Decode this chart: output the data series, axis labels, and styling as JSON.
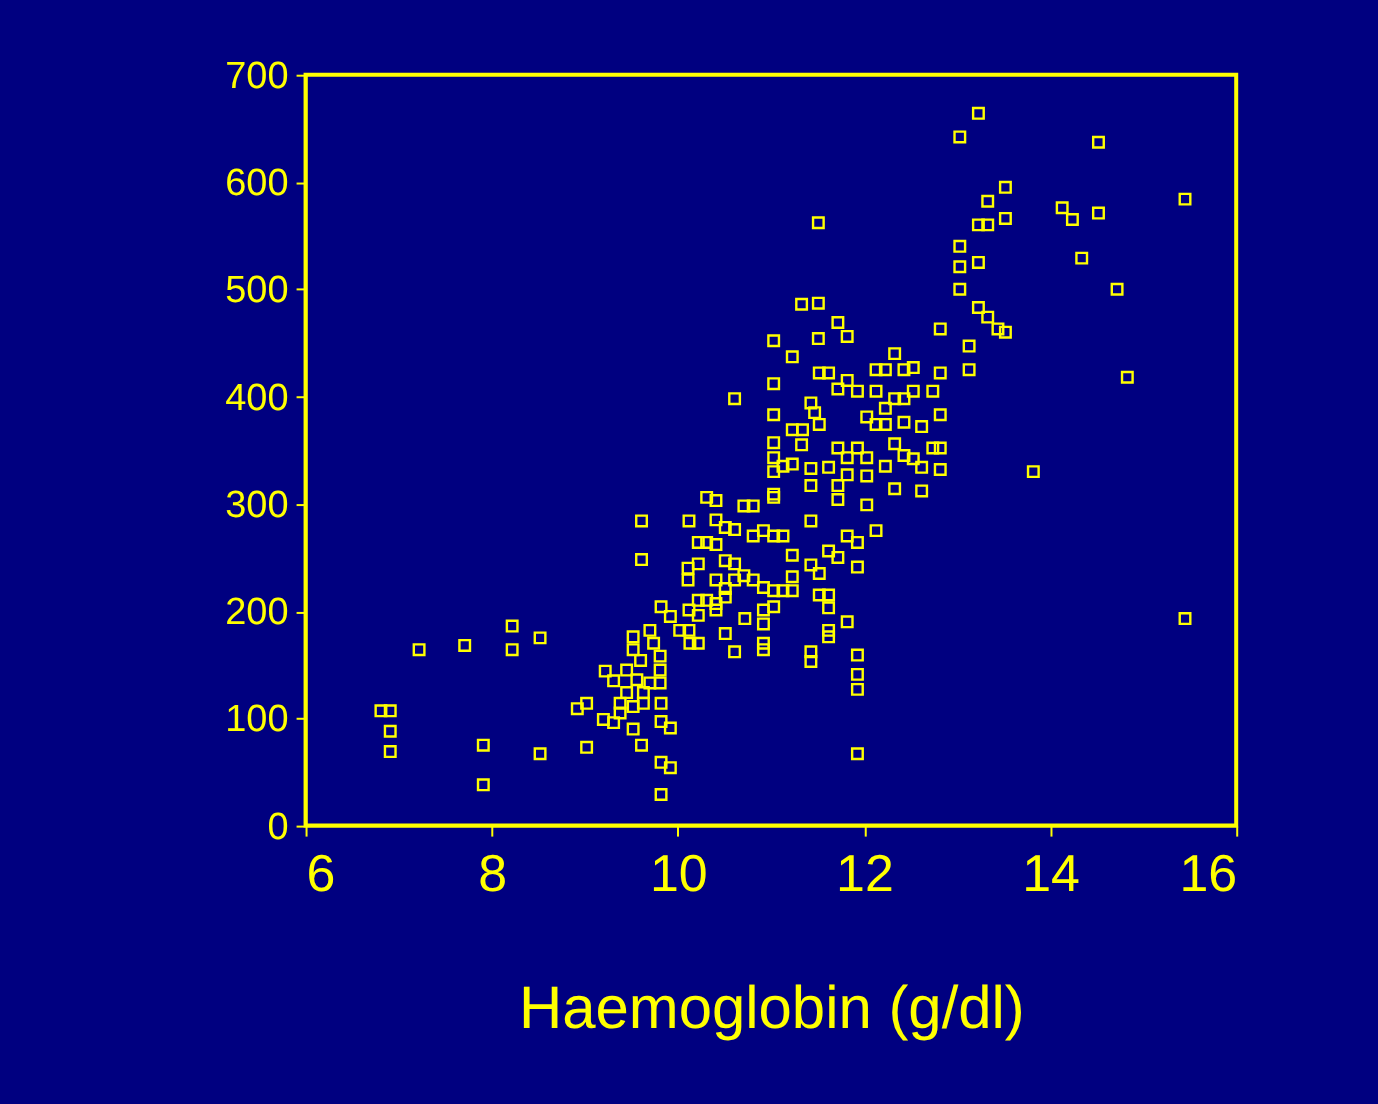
{
  "chart_data": {
    "type": "scatter",
    "xlabel": "Haemoglobin (g/dl)",
    "xlim": [
      6,
      16
    ],
    "xticks": [
      6,
      8,
      10,
      12,
      14,
      16
    ],
    "ylim": [
      0,
      700
    ],
    "yticks": [
      0,
      100,
      200,
      300,
      400,
      500,
      600,
      700
    ],
    "marker": "square",
    "grid": false,
    "series": [
      {
        "color": "#ffff00",
        "x": [
          13.23,
          13.03,
          14.52,
          15.45,
          13.52,
          13.33,
          13.52,
          13.23,
          13.33,
          14.13,
          14.24,
          14.52,
          11.51,
          13.03,
          13.03,
          13.23,
          14.34,
          13.03,
          14.72,
          13.23,
          13.33,
          13.44,
          13.52,
          12.82,
          13.13,
          13.13,
          14.83,
          13.82,
          15.45,
          11.33,
          11.51,
          11.72,
          11.82,
          11.03,
          11.51,
          11.23,
          12.33,
          11.52,
          11.62,
          11.82,
          11.72,
          11.93,
          12.13,
          12.23,
          12.43,
          12.53,
          12.82,
          11.03,
          10.61,
          12.13,
          12.33,
          12.53,
          12.74,
          12.23,
          12.43,
          11.43,
          11.47,
          11.52,
          11.03,
          12.03,
          12.82,
          12.13,
          12.23,
          12.43,
          12.62,
          11.23,
          11.34,
          11.03,
          11.33,
          12.33,
          11.03,
          11.13,
          11.23,
          11.72,
          11.93,
          11.82,
          12.03,
          12.43,
          12.53,
          12.74,
          12.82,
          11.03,
          11.43,
          11.62,
          11.82,
          12.03,
          12.23,
          12.62,
          12.82,
          11.43,
          11.72,
          11.72,
          11.03,
          12.33,
          12.62,
          12.03,
          10.31,
          10.41,
          10.71,
          10.81,
          11.03,
          9.61,
          10.12,
          10.41,
          11.43,
          10.51,
          10.61,
          10.81,
          10.92,
          11.03,
          11.13,
          12.13,
          11.82,
          11.93,
          10.22,
          10.31,
          10.41,
          9.61,
          11.23,
          11.62,
          11.72,
          11.93,
          10.11,
          10.22,
          10.11,
          10.51,
          10.61,
          10.71,
          10.81,
          10.92,
          11.23,
          11.43,
          11.52,
          11.13,
          11.23,
          10.41,
          10.51,
          10.61,
          10.22,
          10.31,
          10.41,
          10.51,
          9.82,
          10.12,
          10.22,
          10.41,
          9.92,
          10.12,
          10.22,
          11.03,
          11.03,
          10.92,
          10.92,
          10.92,
          10.92,
          10.61,
          10.51,
          10.72,
          11.52,
          11.62,
          11.62,
          11.82,
          11.62,
          11.62,
          11.43,
          11.43,
          11.93,
          11.93,
          11.93,
          11.93,
          9.82,
          9.92,
          9.82,
          9.82,
          9.82,
          9.92,
          9.61,
          9.52,
          9.02,
          8.92,
          9.02,
          9.22,
          9.31,
          9.2,
          9.31,
          9.38,
          9.52,
          9.7,
          9.52,
          9.6,
          9.74,
          9.81,
          9.81,
          9.81,
          9.45,
          9.56,
          9.45,
          9.63,
          9.38,
          9.52,
          9.63,
          9.7,
          8.52,
          7.91,
          7.91,
          8.52,
          8.22,
          8.22,
          7.71,
          7.22,
          6.81,
          6.91,
          6.91,
          6.91,
          10.02,
          10.13
        ],
        "values": [
          664,
          642,
          637,
          584,
          595,
          582,
          566,
          560,
          560,
          576,
          565,
          571,
          562,
          540,
          521,
          525,
          529,
          500,
          500,
          483,
          474,
          463,
          460,
          463,
          447,
          425,
          418,
          330,
          193,
          486,
          487,
          469,
          456,
          452,
          454,
          437,
          440,
          422,
          422,
          415,
          407,
          405,
          425,
          425,
          425,
          427,
          422,
          412,
          398,
          405,
          398,
          405,
          405,
          389,
          398,
          394,
          385,
          374,
          383,
          381,
          383,
          374,
          374,
          376,
          372,
          369,
          369,
          357,
          355,
          356,
          343,
          335,
          337,
          352,
          352,
          343,
          343,
          345,
          342,
          352,
          352,
          330,
          333,
          334,
          327,
          326,
          335,
          334,
          332,
          317,
          317,
          304,
          309,
          314,
          312,
          299,
          306,
          303,
          298,
          298,
          306,
          284,
          284,
          285,
          284,
          278,
          276,
          270,
          275,
          270,
          270,
          275,
          270,
          264,
          264,
          264,
          262,
          248,
          252,
          256,
          250,
          241,
          240,
          244,
          229,
          247,
          244,
          233,
          229,
          222,
          232,
          243,
          235,
          219,
          219,
          229,
          221,
          229,
          210,
          210,
          207,
          213,
          204,
          201,
          196,
          201,
          195,
          182,
          170,
          219,
          204,
          201,
          188,
          170,
          164,
          162,
          179,
          193,
          215,
          215,
          203,
          190,
          182,
          176,
          162,
          153,
          159,
          141,
          127,
          67,
          29,
          54,
          59,
          114,
          97,
          91,
          75,
          90,
          73,
          109,
          114,
          144,
          135,
          99,
          96,
          105,
          176,
          182,
          164,
          154,
          170,
          158,
          145,
          133,
          145,
          136,
          124,
          124,
          114,
          111,
          114,
          133,
          67,
          75,
          38,
          175,
          186,
          164,
          168,
          164,
          107,
          107,
          88,
          69,
          182,
          170
        ]
      }
    ]
  }
}
